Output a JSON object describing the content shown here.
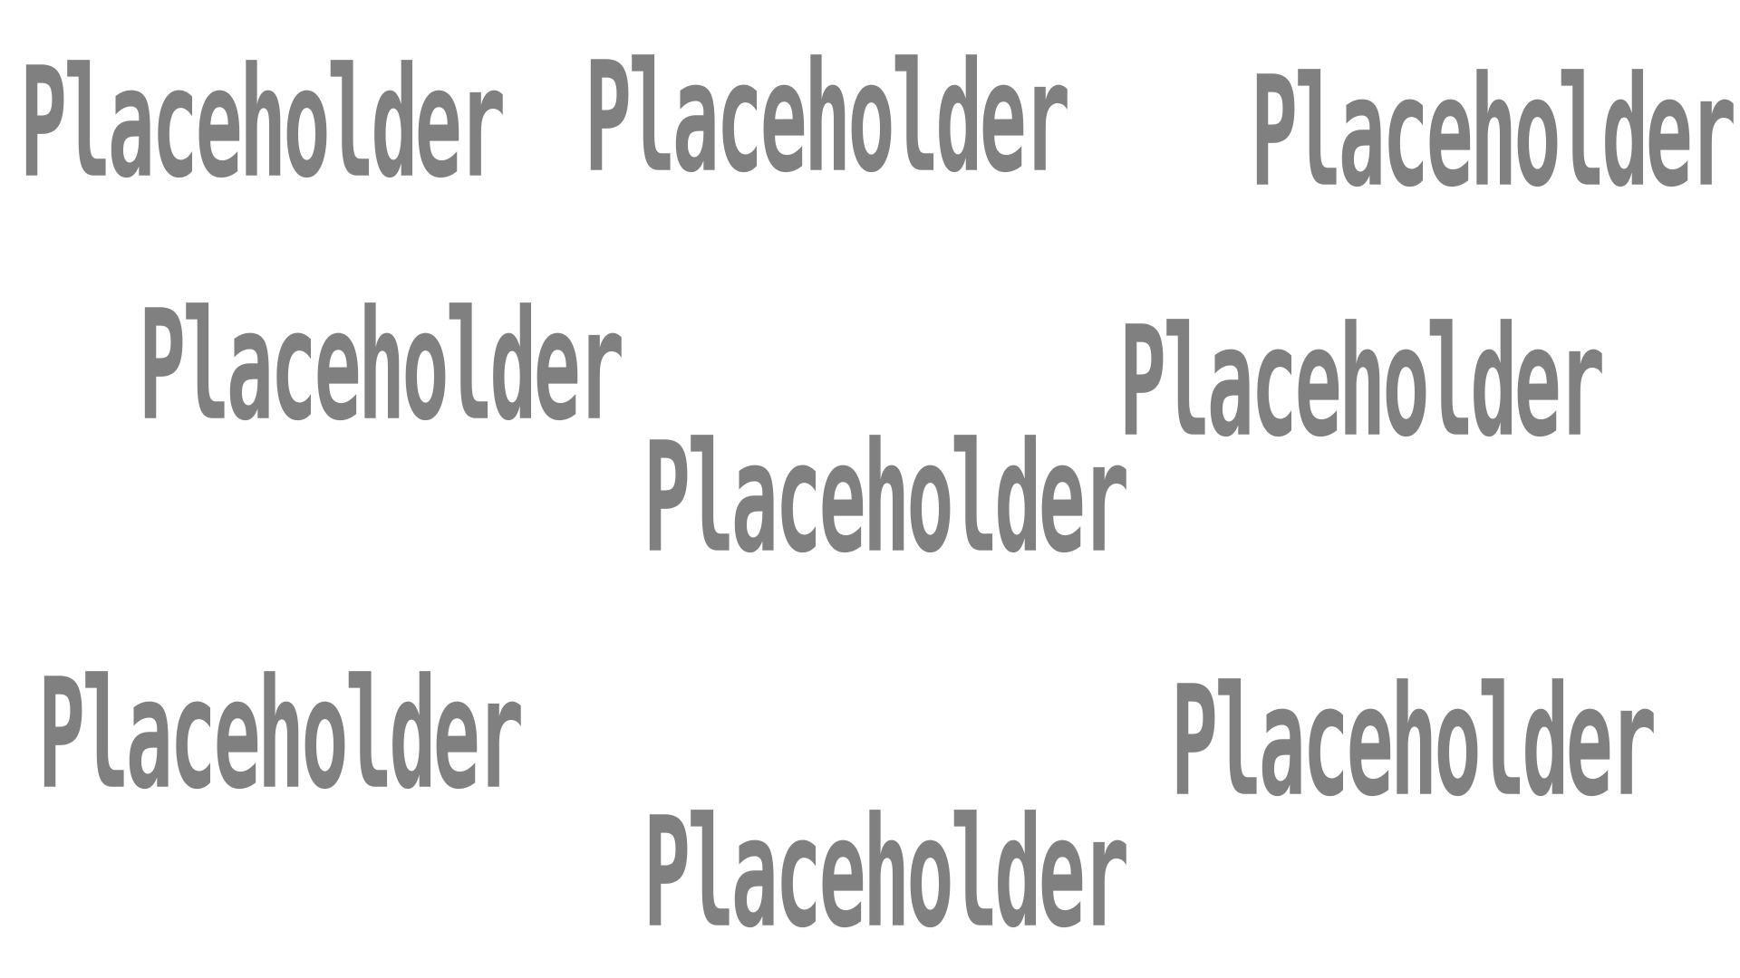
{
  "colors": {
    "background": "#ffffff",
    "text": "#808080"
  },
  "labels": [
    "Placeholder",
    "Placeholder",
    "Placeholder",
    "Placeholder",
    "Placeholder",
    "Placeholder",
    "Placeholder",
    "Placeholder",
    "Placeholder"
  ]
}
